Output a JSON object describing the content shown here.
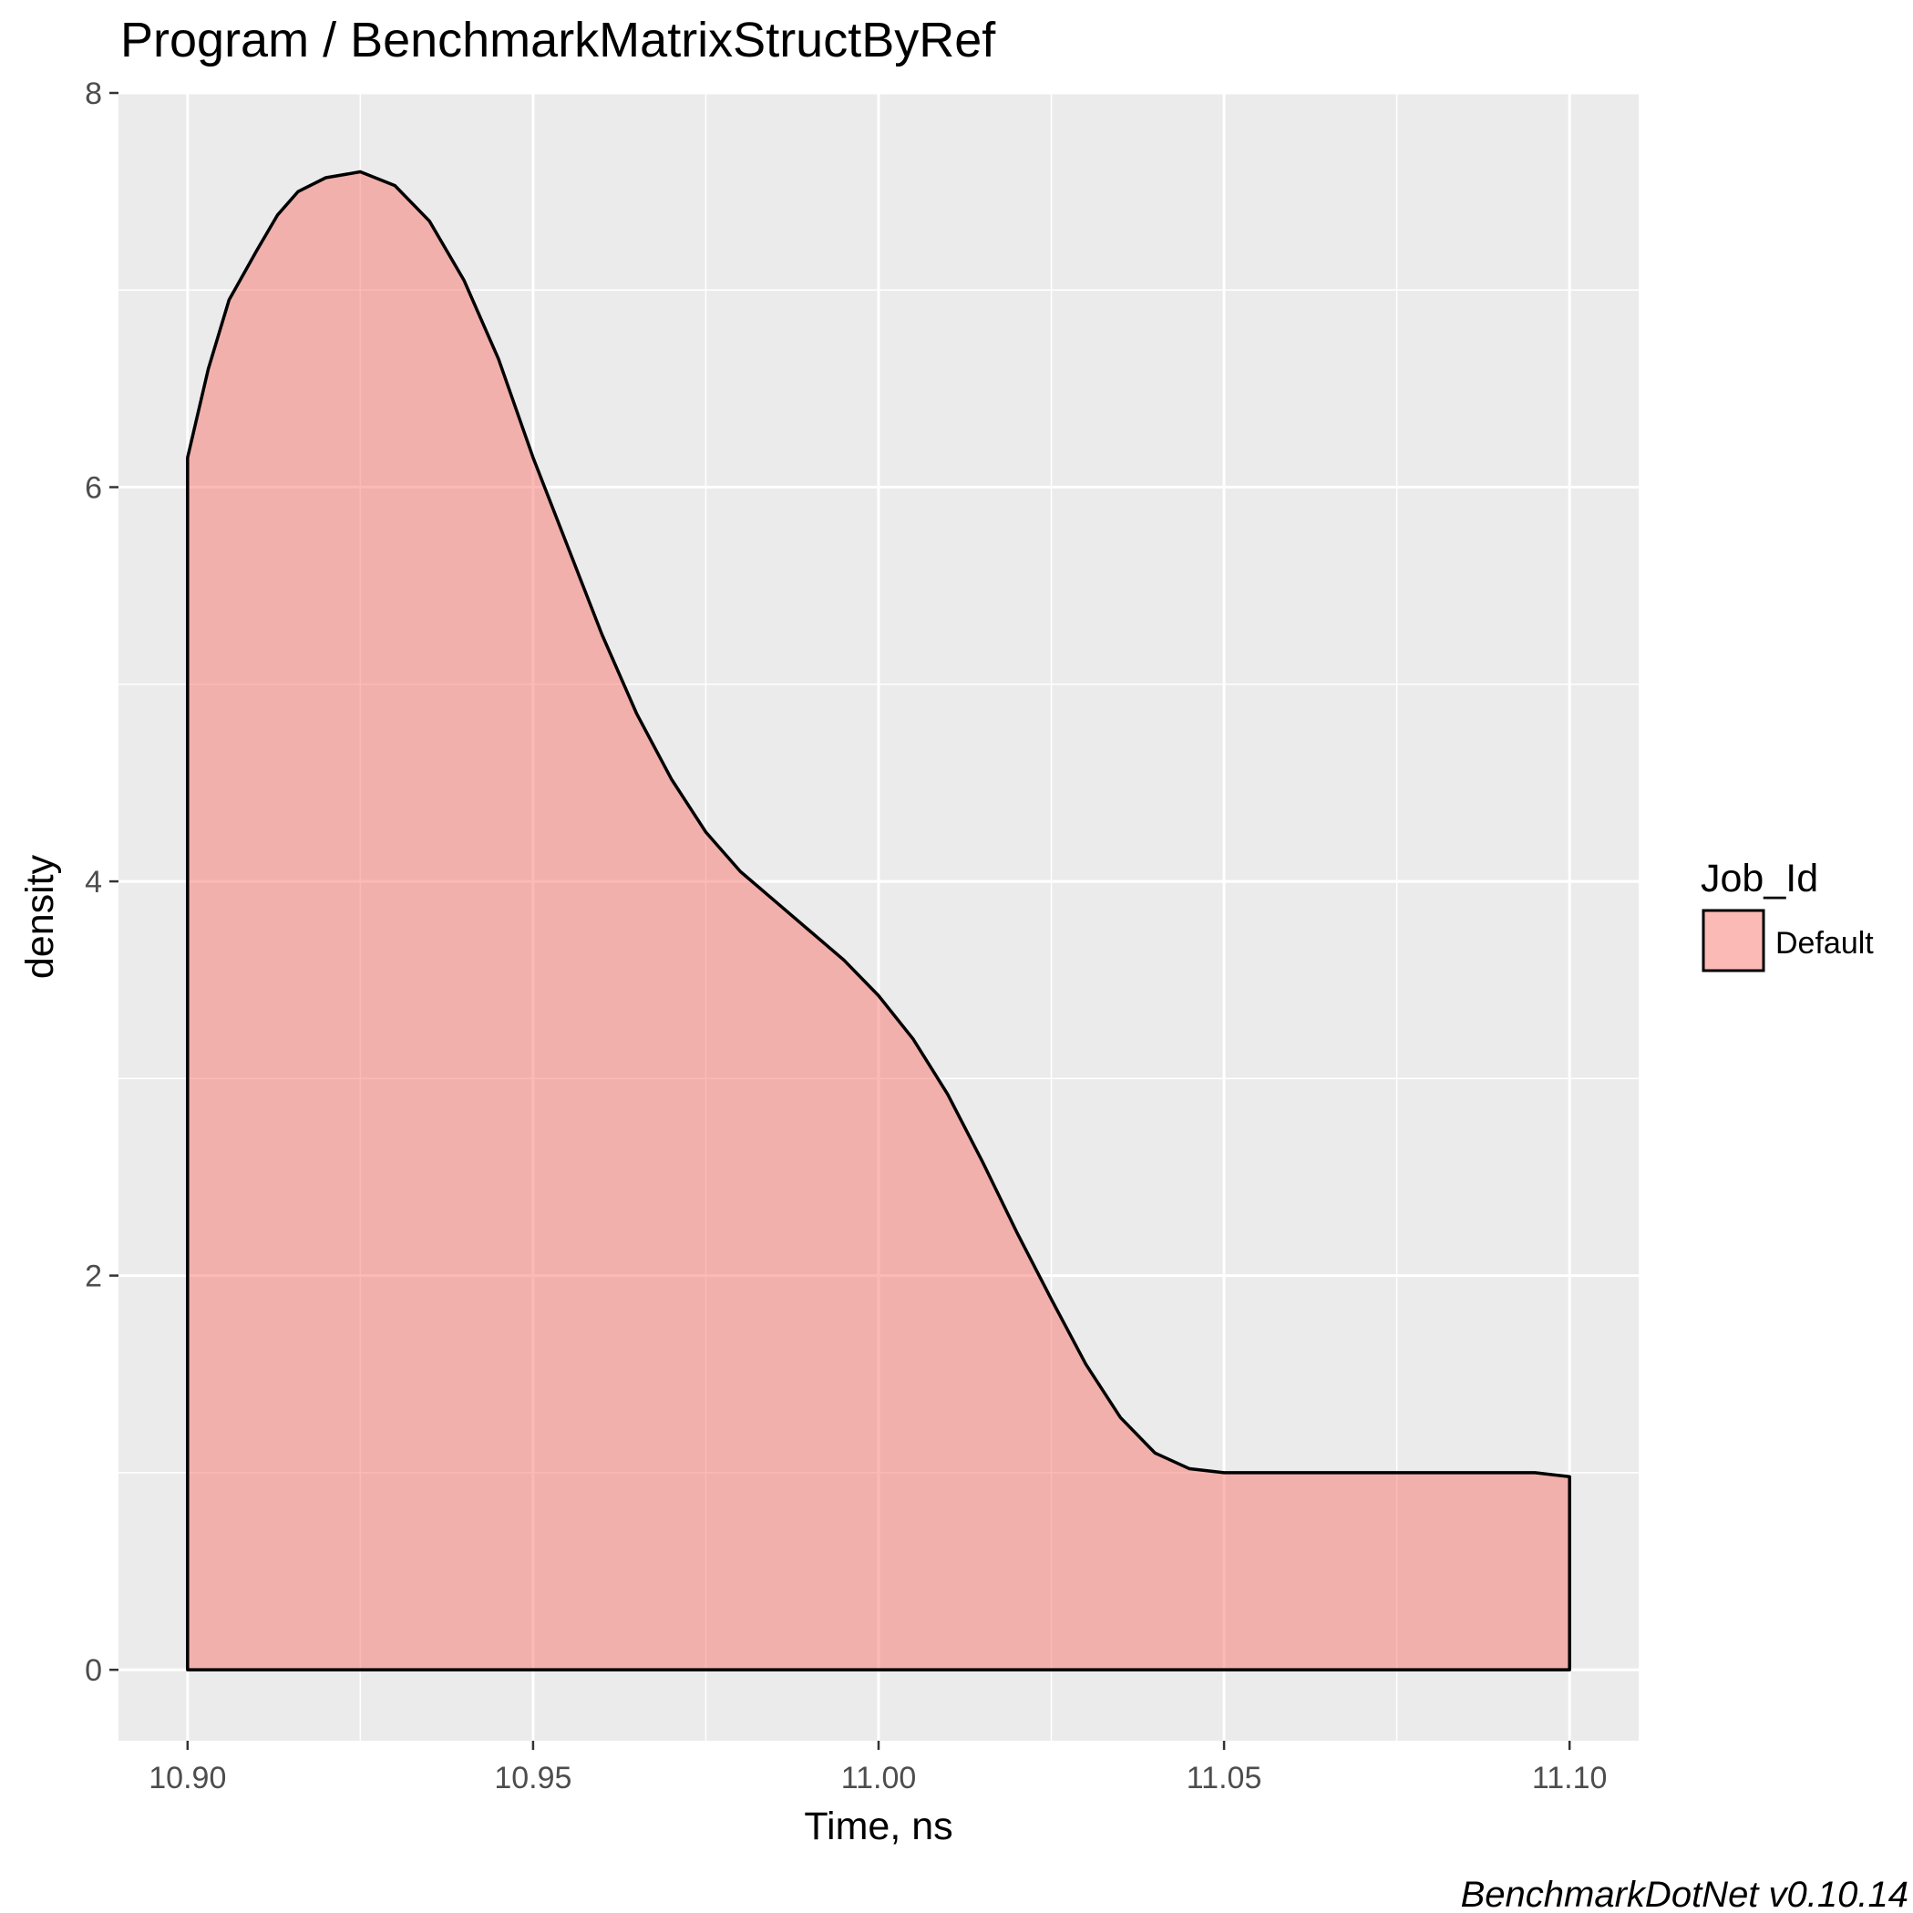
{
  "chart_data": {
    "type": "area",
    "title": "Program / BenchmarkMatrixStructByRef",
    "xlabel": "Time, ns",
    "ylabel": "density",
    "xlim": [
      10.89,
      11.11
    ],
    "ylim": [
      -0.36,
      8.0
    ],
    "x_ticks": [
      10.9,
      10.95,
      11.0,
      11.05,
      11.1
    ],
    "x_tick_labels": [
      "10.90",
      "10.95",
      "11.00",
      "11.05",
      "11.10"
    ],
    "y_ticks": [
      0,
      2,
      4,
      6,
      8
    ],
    "y_tick_labels": [
      "0",
      "2",
      "4",
      "6",
      "8"
    ],
    "grid": true,
    "legend": {
      "title": "Job_Id",
      "position": "right",
      "entries": [
        "Default"
      ]
    },
    "series": [
      {
        "name": "Default",
        "x": [
          10.9,
          10.903,
          10.906,
          10.91,
          10.913,
          10.916,
          10.92,
          10.925,
          10.93,
          10.935,
          10.94,
          10.945,
          10.95,
          10.955,
          10.96,
          10.965,
          10.97,
          10.975,
          10.98,
          10.985,
          10.99,
          10.995,
          11.0,
          11.005,
          11.01,
          11.015,
          11.02,
          11.025,
          11.03,
          11.035,
          11.04,
          11.045,
          11.05,
          11.055,
          11.06,
          11.065,
          11.07,
          11.075,
          11.08,
          11.085,
          11.09,
          11.095,
          11.1
        ],
        "y": [
          6.15,
          6.6,
          6.95,
          7.2,
          7.38,
          7.5,
          7.57,
          7.6,
          7.53,
          7.35,
          7.05,
          6.65,
          6.15,
          5.7,
          5.25,
          4.85,
          4.52,
          4.25,
          4.05,
          3.9,
          3.75,
          3.6,
          3.42,
          3.2,
          2.92,
          2.58,
          2.22,
          1.88,
          1.55,
          1.28,
          1.1,
          1.02,
          1.0,
          1.0,
          1.0,
          1.0,
          1.0,
          1.0,
          1.0,
          1.0,
          1.0,
          1.0,
          0.98
        ]
      }
    ],
    "fill_color": "#f8766d",
    "fill_opacity": 0.5,
    "outline_color": "#000000",
    "panel_color": "#ebebeb",
    "grid_color": "#ffffff"
  },
  "caption": "BenchmarkDotNet v0.10.14"
}
